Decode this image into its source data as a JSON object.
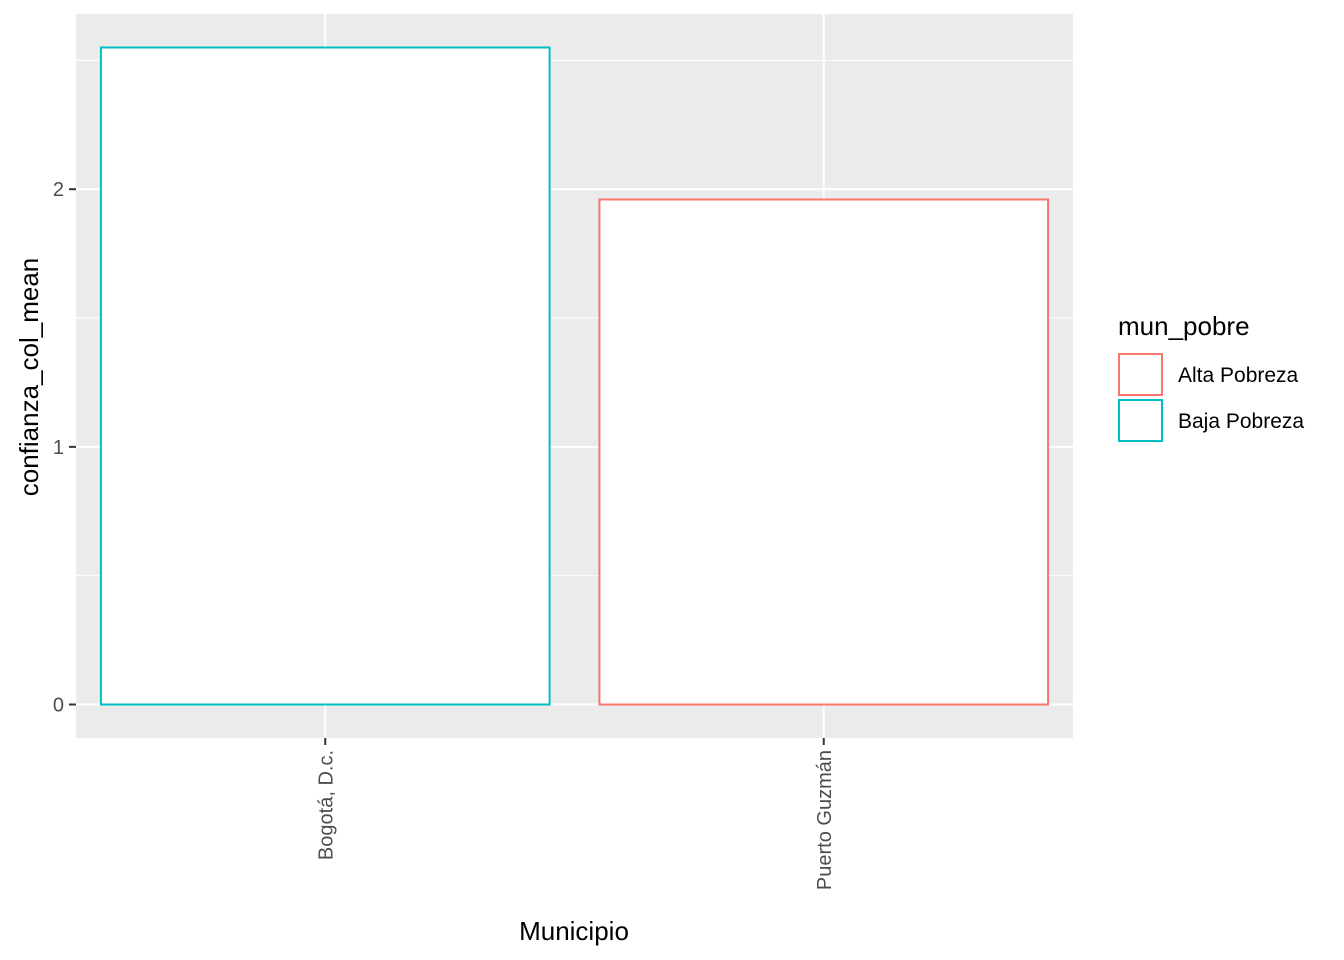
{
  "chart_data": {
    "type": "bar",
    "categories": [
      "Bogotá, D.c.",
      "Puerto Guzmán"
    ],
    "values": [
      2.55,
      1.96
    ],
    "groups": [
      "Baja Pobreza",
      "Alta Pobreza"
    ],
    "xlabel": "Municipio",
    "ylabel": "confianza_col_mean",
    "ylim": [
      -0.13,
      2.68
    ],
    "yticks": [
      0,
      1,
      2
    ],
    "grid": true,
    "legend": {
      "title": "mun_pobre",
      "placement": "right",
      "entries": [
        {
          "label": "Alta Pobreza",
          "color": "#F8766D"
        },
        {
          "label": "Baja Pobreza",
          "color": "#00BFC4"
        }
      ]
    },
    "colors": {
      "panel_bg": "#EBEBEB",
      "grid": "#FFFFFF",
      "bar_fill": "#FFFFFF",
      "Alta Pobreza": "#F8766D",
      "Baja Pobreza": "#00BFC4"
    }
  }
}
